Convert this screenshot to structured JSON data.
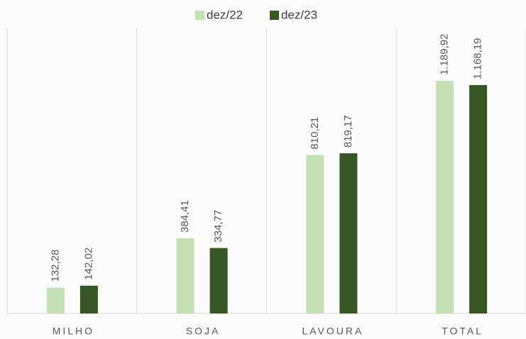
{
  "chart_data": {
    "type": "bar",
    "categories": [
      "MILHO",
      "SOJA",
      "LAVOURA",
      "TOTAL"
    ],
    "series": [
      {
        "name": "dez/22",
        "color": "#c5e0b4",
        "values": [
          132.28,
          384.41,
          810.21,
          1189.92
        ],
        "value_labels": [
          "132,28",
          "384,41",
          "810,21",
          "1.189,92"
        ]
      },
      {
        "name": "dez/23",
        "color": "#375623",
        "values": [
          142.02,
          334.77,
          819.17,
          1168.19
        ],
        "value_labels": [
          "142,02",
          "334,77",
          "819,17",
          "1.168,19"
        ]
      }
    ],
    "ylim": [
      0,
      1400
    ],
    "legend": "top"
  }
}
